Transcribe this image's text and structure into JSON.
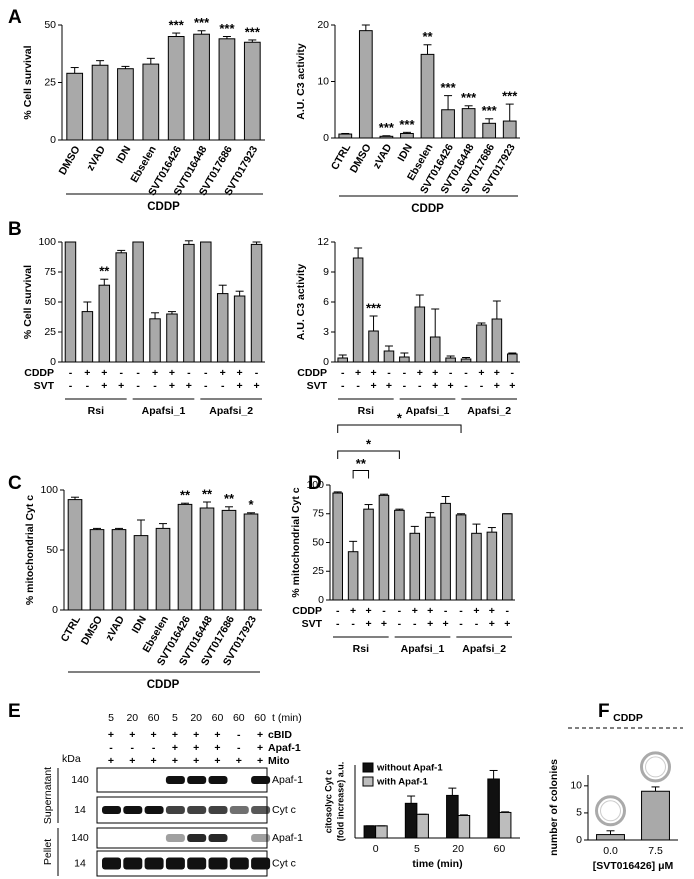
{
  "panel_labels": [
    "A",
    "B",
    "C",
    "D",
    "E",
    "F"
  ],
  "chart_data": [
    {
      "type": "bar",
      "ylabel": "% Cell survival",
      "color": "#a9a9a9",
      "categories": [
        "DMSO",
        "zVAD",
        "IDN",
        "Ebselen",
        "SVT016426",
        "SVT016448",
        "SVT017686",
        "SVT017923"
      ],
      "values": [
        29,
        32.5,
        31,
        33,
        45,
        46,
        44,
        42.5
      ],
      "errors": [
        2.5,
        2,
        1,
        2.5,
        1.5,
        1.5,
        1,
        1
      ],
      "stars": [
        null,
        null,
        null,
        null,
        "***",
        "***",
        "***",
        "***"
      ],
      "ylim": [
        0,
        50
      ],
      "yticks": [
        0,
        25,
        50
      ],
      "bracket_label": "CDDP"
    },
    {
      "type": "bar",
      "ylabel": "A.U. C3 activity",
      "color": "#a9a9a9",
      "categories": [
        "CTRL",
        "DMSO",
        "zVAD",
        "IDN",
        "Ebselen",
        "SVT016426",
        "SVT016448",
        "SVT017686",
        "SVT017923"
      ],
      "values": [
        0.7,
        19,
        0.3,
        0.8,
        14.8,
        5,
        5.2,
        2.6,
        3
      ],
      "errors": [
        0.1,
        1,
        0.1,
        0.2,
        1.7,
        2.5,
        0.5,
        0.8,
        3
      ],
      "stars": [
        null,
        null,
        "***",
        "***",
        "**",
        "***",
        "***",
        "***",
        "***"
      ],
      "ylim": [
        0,
        20
      ],
      "yticks": [
        0,
        10,
        20
      ],
      "bracket_label": "CDDP"
    },
    {
      "type": "bar",
      "ylabel": "% Cell survival",
      "color": "#a9a9a9",
      "values": [
        100,
        42,
        64,
        91,
        100,
        36,
        40,
        98,
        100,
        57,
        55,
        98
      ],
      "errors": [
        0,
        8,
        5,
        2,
        0,
        5,
        2,
        3,
        0,
        7,
        4,
        2
      ],
      "stars": [
        null,
        null,
        "**",
        null,
        null,
        null,
        null,
        null,
        null,
        null,
        null,
        null
      ],
      "rows": [
        {
          "name": "CDDP",
          "signs": [
            "-",
            "+",
            "+",
            "-",
            "-",
            "+",
            "+",
            "-",
            "-",
            "+",
            "+",
            "-"
          ]
        },
        {
          "name": "SVT",
          "signs": [
            "-",
            "-",
            "+",
            "+",
            "-",
            "-",
            "+",
            "+",
            "-",
            "-",
            "+",
            "+"
          ]
        }
      ],
      "groups": [
        "Rsi",
        "Apafsi_1",
        "Apafsi_2"
      ],
      "ylim": [
        0,
        100
      ],
      "yticks": [
        0,
        25,
        50,
        75,
        100
      ]
    },
    {
      "type": "bar",
      "ylabel": "A.U. C3 activity",
      "color": "#a9a9a9",
      "values": [
        0.4,
        10.4,
        3.1,
        1.1,
        0.5,
        5.5,
        2.5,
        0.4,
        0.3,
        3.7,
        4.3,
        0.8
      ],
      "errors": [
        0.3,
        1,
        1.5,
        0.5,
        0.4,
        1.2,
        2.8,
        0.2,
        0.15,
        0.2,
        1.8,
        0.1
      ],
      "stars": [
        null,
        null,
        "***",
        null,
        null,
        null,
        null,
        null,
        null,
        null,
        null,
        null
      ],
      "rows": [
        {
          "name": "CDDP",
          "signs": [
            "-",
            "+",
            "+",
            "-",
            "-",
            "+",
            "+",
            "-",
            "-",
            "+",
            "+",
            "-"
          ]
        },
        {
          "name": "SVT",
          "signs": [
            "-",
            "-",
            "+",
            "+",
            "-",
            "-",
            "+",
            "+",
            "-",
            "-",
            "+",
            "+"
          ]
        }
      ],
      "groups": [
        "Rsi",
        "Apafsi_1",
        "Apafsi_2"
      ],
      "ylim": [
        0,
        12
      ],
      "yticks": [
        0,
        3,
        6,
        9,
        12
      ]
    },
    {
      "type": "bar",
      "ylabel": "% mitochondrial Cyt c",
      "color": "#a9a9a9",
      "categories": [
        "CTRL",
        "DMSO",
        "zVAD",
        "IDN",
        "Ebselen",
        "SVT016426",
        "SVT016448",
        "SVT017686",
        "SVT017923"
      ],
      "values": [
        92,
        67,
        67,
        62,
        68,
        88,
        85,
        83,
        80
      ],
      "errors": [
        2,
        1,
        1,
        13,
        4,
        1,
        5,
        3,
        1
      ],
      "stars": [
        null,
        null,
        null,
        null,
        null,
        "**",
        "**",
        "**",
        "*"
      ],
      "ylim": [
        0,
        100
      ],
      "yticks": [
        0,
        50,
        100
      ],
      "bracket_label": "CDDP"
    },
    {
      "type": "bar",
      "ylabel": "% mitochondrial Cyt c",
      "color": "#a9a9a9",
      "values": [
        93,
        42,
        79,
        91,
        78,
        58,
        72,
        84,
        74,
        58,
        59,
        75
      ],
      "errors": [
        1,
        9,
        4,
        1,
        1,
        6,
        4,
        6,
        1,
        8,
        4,
        0
      ],
      "rows": [
        {
          "name": "CDDP",
          "signs": [
            "-",
            "+",
            "+",
            "-",
            "-",
            "+",
            "+",
            "-",
            "-",
            "+",
            "+",
            "-"
          ]
        },
        {
          "name": "SVT",
          "signs": [
            "-",
            "-",
            "+",
            "+",
            "-",
            "-",
            "+",
            "+",
            "-",
            "-",
            "+",
            "+"
          ]
        }
      ],
      "groups": [
        "Rsi",
        "Apafsi_1",
        "Apafsi_2"
      ],
      "brackets": [
        {
          "from": 0,
          "to": 4,
          "label": "*"
        },
        {
          "from": 0,
          "to": 8,
          "label": "*"
        },
        {
          "from": 1,
          "to": 2,
          "label": "**"
        }
      ],
      "ylim": [
        0,
        100
      ],
      "yticks": [
        0,
        25,
        50,
        75,
        100
      ]
    },
    {
      "type": "grouped_bar",
      "ylabel": [
        "citosolyc Cyt c",
        "(fold increase) a.u."
      ],
      "xlabel": "time (min)",
      "categories": [
        "0",
        "5",
        "20",
        "60"
      ],
      "series": [
        {
          "name": "without Apaf-1",
          "color": "#111111",
          "values": [
            1,
            2.85,
            3.5,
            4.85
          ],
          "errors": [
            0,
            0.6,
            0.6,
            0.7
          ]
        },
        {
          "name": "with Apaf-1",
          "color": "#bdbdbd",
          "values": [
            1,
            1.95,
            1.85,
            2.1
          ],
          "errors": [
            0,
            0,
            0.05,
            0.05
          ]
        }
      ],
      "ylim": [
        0,
        6
      ]
    },
    {
      "type": "bar",
      "title": "CDDP",
      "ylabel": "number of colonies",
      "xlabel": "[SVT016426] μM",
      "color": "#a9a9a9",
      "categories": [
        "0.0",
        "7.5"
      ],
      "values": [
        1,
        9
      ],
      "errors": [
        0.7,
        0.8
      ],
      "ylim": [
        0,
        12
      ],
      "yticks": [
        0,
        5,
        10
      ]
    }
  ],
  "blot": {
    "time_header": "t (min)",
    "times": [
      "5",
      "20",
      "60",
      "5",
      "20",
      "60",
      "60",
      "60"
    ],
    "conditions": [
      {
        "name": "cBID",
        "signs": [
          "+",
          "+",
          "+",
          "+",
          "+",
          "+",
          "-",
          "+"
        ]
      },
      {
        "name": "Apaf-1",
        "signs": [
          "-",
          "-",
          "-",
          "+",
          "+",
          "+",
          "-",
          "+"
        ]
      },
      {
        "name": "Mito",
        "signs": [
          "+",
          "+",
          "+",
          "+",
          "+",
          "+",
          "+",
          "+"
        ]
      }
    ],
    "unit": "kDa",
    "sections": [
      {
        "name": "Supernatant",
        "rows": [
          {
            "mw": "140",
            "protein": "Apaf-1"
          },
          {
            "mw": "14",
            "protein": "Cyt c"
          }
        ]
      },
      {
        "name": "Pellet",
        "rows": [
          {
            "mw": "140",
            "protein": "Apaf-1"
          },
          {
            "mw": "14",
            "protein": "Cyt c"
          }
        ]
      }
    ]
  }
}
